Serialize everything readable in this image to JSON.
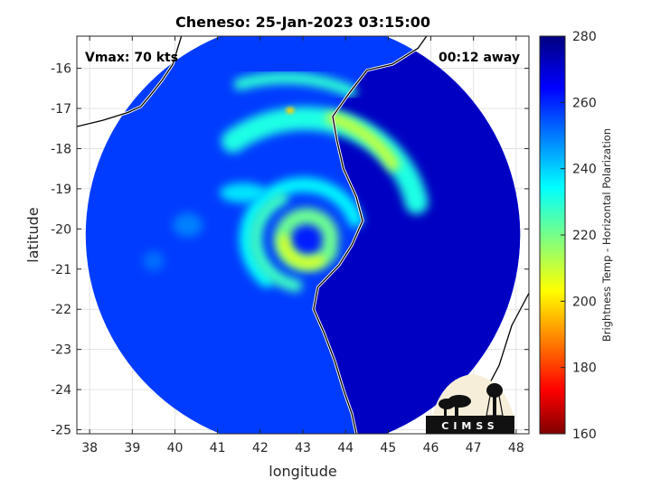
{
  "chart_data": {
    "type": "heatmap",
    "title": "Cheneso: 25-Jan-2023 03:15:00",
    "xlabel": "longitude",
    "ylabel": "latitude",
    "xlim": [
      37.7,
      48.3
    ],
    "ylim": [
      -25.1,
      -15.2
    ],
    "xticks": [
      38,
      39,
      40,
      41,
      42,
      43,
      44,
      45,
      46,
      47,
      48
    ],
    "yticks": [
      -16,
      -17,
      -18,
      -19,
      -20,
      -21,
      -22,
      -23,
      -24,
      -25
    ],
    "grid": true,
    "annotations": {
      "vmax": "Vmax: 70 kts",
      "away": "00:12 away"
    },
    "colorbar": {
      "label": "Brightness Temp - Horizontal Polarization",
      "min": 160,
      "max": 280,
      "ticks": [
        160,
        180,
        200,
        220,
        240,
        260,
        280
      ],
      "colormap": "jet"
    },
    "swath": {
      "center_lon": 43.0,
      "center_lat": -20.15,
      "radius_deg": 5.25
    },
    "storm_center": {
      "lon": 43.1,
      "lat": -20.2
    },
    "coastline": [
      [
        37.7,
        -17.45
      ],
      [
        38.3,
        -17.3
      ],
      [
        38.9,
        -17.1
      ],
      [
        39.2,
        -16.95
      ],
      [
        39.4,
        -16.7
      ],
      [
        39.7,
        -16.3
      ],
      [
        39.95,
        -15.9
      ],
      [
        40.15,
        -15.2
      ]
    ],
    "coastline_east": [
      [
        45.9,
        -15.2
      ],
      [
        45.7,
        -15.5
      ],
      [
        45.1,
        -15.9
      ],
      [
        44.5,
        -16.05
      ],
      [
        44.1,
        -16.6
      ],
      [
        43.7,
        -17.2
      ],
      [
        43.8,
        -17.8
      ],
      [
        43.95,
        -18.5
      ],
      [
        44.25,
        -19.2
      ],
      [
        44.4,
        -19.8
      ],
      [
        44.15,
        -20.4
      ],
      [
        43.85,
        -20.9
      ],
      [
        43.35,
        -21.45
      ],
      [
        43.25,
        -22.0
      ],
      [
        43.5,
        -22.6
      ],
      [
        43.75,
        -23.3
      ],
      [
        43.95,
        -24.0
      ],
      [
        44.15,
        -24.6
      ],
      [
        44.25,
        -25.1
      ]
    ],
    "coastline_far": [
      [
        48.3,
        -21.6
      ],
      [
        47.9,
        -22.4
      ],
      [
        47.6,
        -23.4
      ],
      [
        47.2,
        -24.2
      ],
      [
        47.05,
        -24.8
      ]
    ],
    "features": [
      {
        "kind": "blob",
        "lon": 43.2,
        "lat": -20.25,
        "rx": 0.5,
        "ry": 0.45,
        "tb": 262
      },
      {
        "kind": "arc",
        "lon": 43.1,
        "lat": -20.25,
        "r": 0.55,
        "a0": -20,
        "a1": 330,
        "width": 0.38,
        "tb": 222
      },
      {
        "kind": "arc",
        "lon": 43.1,
        "lat": -20.25,
        "r": 0.55,
        "a0": 180,
        "a1": 300,
        "width": 0.22,
        "tb": 208
      },
      {
        "kind": "arc",
        "lon": 43.05,
        "lat": -20.2,
        "r": 1.25,
        "a0": 20,
        "a1": 230,
        "width": 0.35,
        "tb": 236
      },
      {
        "kind": "arc",
        "lon": 43.05,
        "lat": -20.2,
        "r": 1.1,
        "a0": 120,
        "a1": 260,
        "width": 0.3,
        "tb": 228
      },
      {
        "kind": "arc",
        "lon": 43.2,
        "lat": -20.0,
        "r": 2.55,
        "a0": 15,
        "a1": 130,
        "width": 0.55,
        "tb": 232
      },
      {
        "kind": "arc",
        "lon": 43.2,
        "lat": -20.0,
        "r": 2.5,
        "a0": 40,
        "a1": 80,
        "width": 0.3,
        "tb": 212
      },
      {
        "kind": "arc",
        "lon": 43.2,
        "lat": -20.0,
        "r": 3.55,
        "a0": 75,
        "a1": 115,
        "width": 0.28,
        "tb": 230
      },
      {
        "kind": "blob",
        "lon": 42.7,
        "lat": -17.05,
        "rx": 0.1,
        "ry": 0.08,
        "tb": 200
      },
      {
        "kind": "blob",
        "lon": 41.6,
        "lat": -19.1,
        "rx": 0.55,
        "ry": 0.25,
        "tb": 238
      },
      {
        "kind": "blob",
        "lon": 40.3,
        "lat": -19.9,
        "rx": 0.35,
        "ry": 0.3,
        "tb": 250
      },
      {
        "kind": "blob",
        "lon": 39.5,
        "lat": -20.8,
        "rx": 0.25,
        "ry": 0.25,
        "tb": 252
      }
    ]
  },
  "logo_text": "CIMSS"
}
